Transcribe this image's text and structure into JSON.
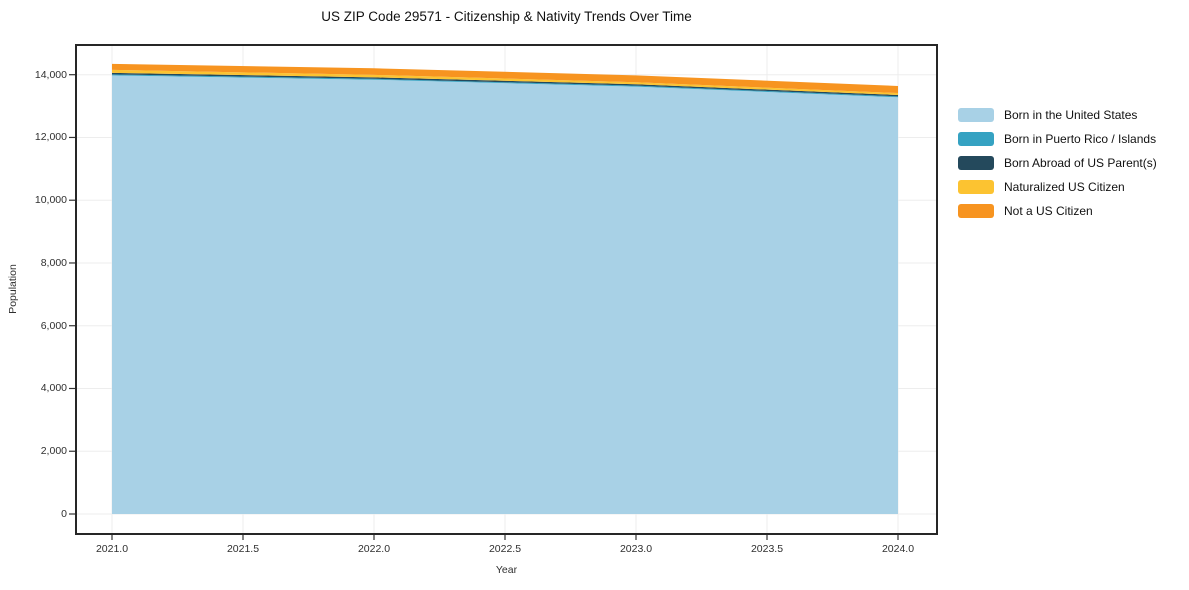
{
  "title": "US ZIP Code 29571 - Citizenship & Nativity Trends Over Time",
  "chart_data": {
    "type": "area",
    "stacked": true,
    "title": "US ZIP Code 29571 - Citizenship & Nativity Trends Over Time",
    "xlabel": "Year",
    "ylabel": "Population",
    "x": [
      2021,
      2022,
      2023,
      2024
    ],
    "series": [
      {
        "name": "Born in the United States",
        "color": "#a8d1e6",
        "values": [
          13980,
          13840,
          13620,
          13280
        ]
      },
      {
        "name": "Born in Puerto Rico / Islands",
        "color": "#35a2c2",
        "values": [
          30,
          30,
          30,
          30
        ]
      },
      {
        "name": "Born Abroad of US Parent(s)",
        "color": "#24495c",
        "values": [
          50,
          45,
          45,
          45
        ]
      },
      {
        "name": "Naturalized US Citizen",
        "color": "#fcc331",
        "values": [
          95,
          80,
          65,
          60
        ]
      },
      {
        "name": "Not a US Citizen",
        "color": "#f79420",
        "values": [
          190,
          210,
          220,
          225
        ]
      }
    ],
    "x_tick_labels": [
      "2021.0",
      "2021.5",
      "2022.0",
      "2022.5",
      "2023.0",
      "2023.5",
      "2024.0"
    ],
    "y_tick_labels": [
      "0",
      "2,000",
      "4,000",
      "6,000",
      "8,000",
      "10,000",
      "12,000",
      "14,000"
    ],
    "xlim": [
      2020.86,
      2024.15
    ],
    "ylim": [
      -670,
      14990
    ],
    "grid": true,
    "legend_position": "right",
    "colors": {
      "grid": "#ededed",
      "spine": "#262626",
      "tick": "#333333",
      "background": "#ffffff"
    }
  }
}
